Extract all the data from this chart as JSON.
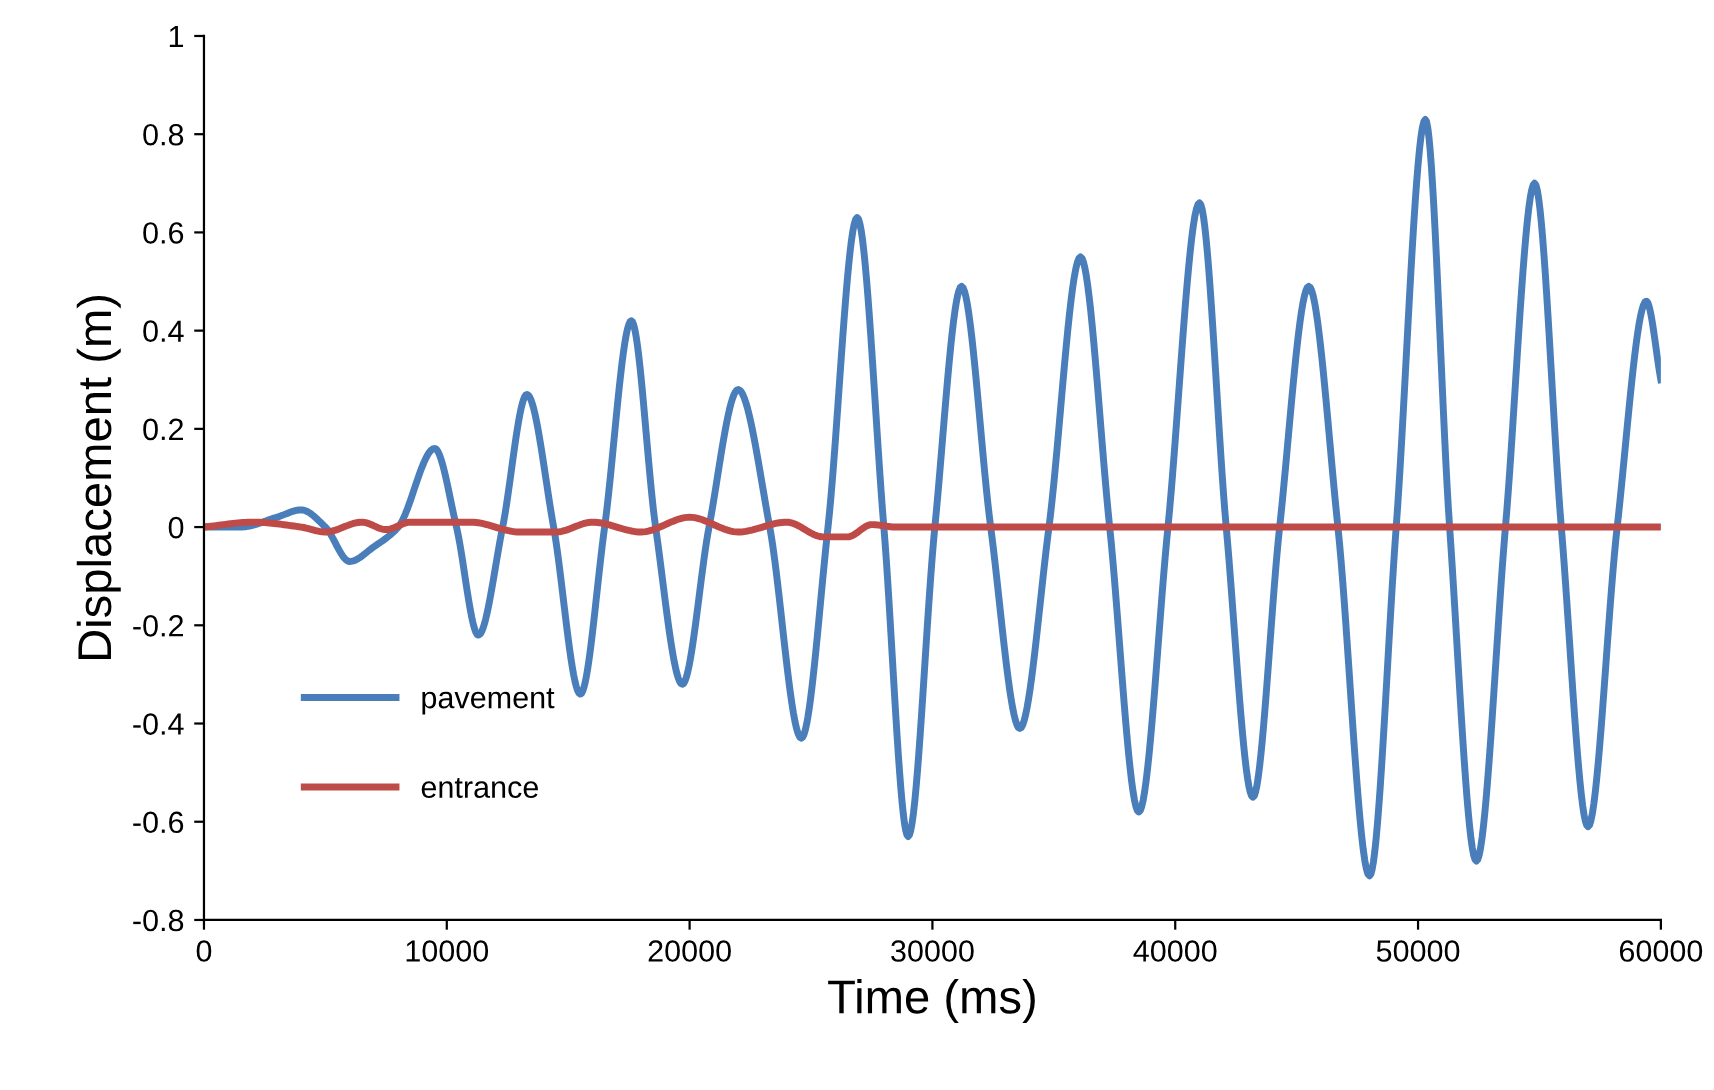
{
  "chart_data": {
    "type": "line",
    "xlabel": "Time (ms)",
    "ylabel": "Displacement (m)",
    "xlim": [
      0,
      60000
    ],
    "xticks": [
      0,
      10000,
      20000,
      30000,
      40000,
      50000,
      60000
    ],
    "ylim": [
      -0.8,
      1
    ],
    "yticks": [
      -0.8,
      -0.6,
      -0.4,
      -0.2,
      0,
      0.2,
      0.4,
      0.6,
      0.8,
      1
    ],
    "grid": false,
    "legend": "bottom left",
    "marker": "none",
    "line_style": "solid",
    "series": [
      {
        "name": "pavement",
        "color": "#4a7ebb",
        "x": [
          0,
          1500,
          3000,
          4000,
          5000,
          6000,
          7000,
          8000,
          9500,
          10400,
          11300,
          12300,
          13300,
          14400,
          15500,
          16500,
          17600,
          18600,
          19700,
          20800,
          22000,
          23300,
          24600,
          25700,
          26900,
          28000,
          29000,
          30100,
          31200,
          32400,
          33600,
          34800,
          36100,
          37300,
          38500,
          39700,
          41000,
          42100,
          43200,
          44300,
          45500,
          46700,
          48000,
          49100,
          50300,
          51300,
          52400,
          53600,
          54800,
          55900,
          57000,
          58200,
          59400,
          60000
        ],
        "values": [
          0,
          0,
          0.02,
          0.035,
          0.0,
          -0.07,
          -0.04,
          0.0,
          0.16,
          0,
          -0.22,
          0,
          0.27,
          0,
          -0.34,
          0,
          0.42,
          0,
          -0.32,
          0,
          0.28,
          0,
          -0.43,
          0,
          0.63,
          0,
          -0.63,
          0,
          0.49,
          0,
          -0.41,
          0,
          0.55,
          0,
          -0.58,
          0,
          0.66,
          0,
          -0.55,
          0,
          0.49,
          0,
          -0.71,
          0,
          0.83,
          0,
          -0.68,
          0,
          0.7,
          0,
          -0.61,
          0,
          0.46,
          0.3
        ]
      },
      {
        "name": "entrance",
        "color": "#be4b48",
        "x": [
          0,
          2000,
          4000,
          5000,
          6500,
          7500,
          8500,
          11000,
          13000,
          14500,
          16000,
          18000,
          20000,
          22000,
          24000,
          25500,
          26500,
          27500,
          28500,
          60000
        ],
        "values": [
          0,
          0.01,
          0,
          -0.01,
          0.01,
          -0.005,
          0.01,
          0.01,
          -0.01,
          -0.01,
          0.01,
          -0.01,
          0.02,
          -0.01,
          0.01,
          -0.02,
          -0.02,
          0.005,
          0,
          0
        ]
      }
    ]
  }
}
